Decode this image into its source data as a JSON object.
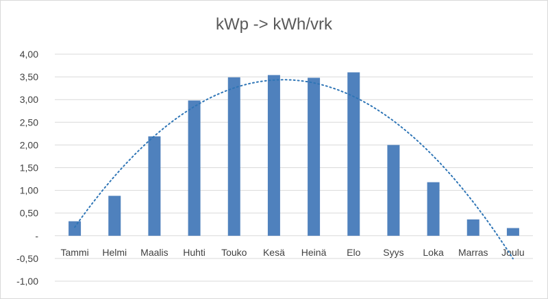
{
  "chart_data": {
    "type": "bar",
    "title": "kWp -> kWh/vrk",
    "categories": [
      "Tammi",
      "Helmi",
      "Maalis",
      "Huhti",
      "Touko",
      "Kesä",
      "Heinä",
      "Elo",
      "Syys",
      "Loka",
      "Marras",
      "Joulu"
    ],
    "values": [
      0.32,
      0.88,
      2.19,
      2.98,
      3.49,
      3.54,
      3.48,
      3.6,
      2.0,
      1.18,
      0.36,
      0.17
    ],
    "ylim": [
      -1.0,
      4.0
    ],
    "yticks": [
      4.0,
      3.5,
      3.0,
      2.5,
      2.0,
      1.5,
      1.0,
      0.5,
      0,
      -0.5,
      -1.0
    ],
    "ytick_labels": [
      "4,00",
      "3,50",
      "3,00",
      "2,50",
      "2,00",
      "1,50",
      "1,00",
      "0,50",
      "-",
      "-0,50",
      "-1,00"
    ],
    "grid": true,
    "trendline": {
      "type": "polynomial",
      "style": "dotted"
    },
    "colors": {
      "bar": "#4f81bd",
      "trend": "#2e75b6",
      "grid": "#d9d9d9"
    }
  }
}
